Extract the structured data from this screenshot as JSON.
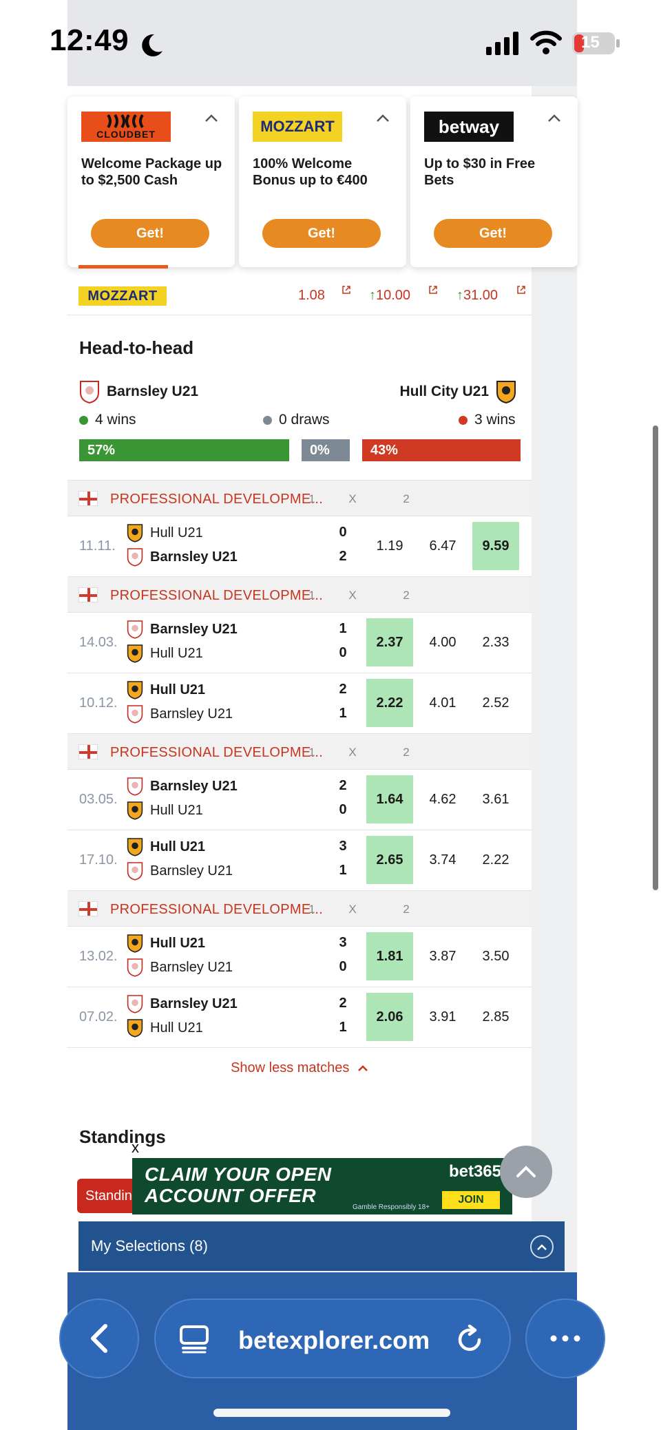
{
  "status": {
    "time": "12:49",
    "battery": "15"
  },
  "promos": [
    {
      "brand": "CLOUDBET",
      "text": "Welcome Package up to $2,500 Cash",
      "cta": "Get!"
    },
    {
      "brand": "MOZZART",
      "text": "100% Welcome Bonus up to €400",
      "cta": "Get!"
    },
    {
      "brand": "betway",
      "text": "Up to $30 in Free Bets",
      "cta": "Get!"
    }
  ],
  "odds_row": {
    "bookmaker": "MOZZART",
    "home": "1.08",
    "draw": "10.00",
    "away": "31.00"
  },
  "h2h": {
    "title": "Head-to-head",
    "home_team": "Barnsley U21",
    "away_team": "Hull City U21",
    "home_wins": "4 wins",
    "draws": "0 draws",
    "away_wins": "3 wins",
    "home_pct": "57%",
    "draw_pct": "0%",
    "away_pct": "43%",
    "home_frac": 0.57,
    "draw_frac": 0.0,
    "away_frac": 0.43
  },
  "headers": {
    "one": "1",
    "x": "X",
    "two": "2"
  },
  "league_name": "PROFESSIONAL DEVELOPME...",
  "matches": [
    {
      "date": "11.11.",
      "t1": "Hull U21",
      "t2": "Barnsley U21",
      "s1": "0",
      "s2": "2",
      "o1": "1.19",
      "ox": "6.47",
      "o2": "9.59"
    },
    {
      "date": "14.03.",
      "t1": "Barnsley U21",
      "t2": "Hull U21",
      "s1": "1",
      "s2": "0",
      "o1": "2.37",
      "ox": "4.00",
      "o2": "2.33"
    },
    {
      "date": "10.12.",
      "t1": "Hull U21",
      "t2": "Barnsley U21",
      "s1": "2",
      "s2": "1",
      "o1": "2.22",
      "ox": "4.01",
      "o2": "2.52"
    },
    {
      "date": "03.05.",
      "t1": "Barnsley U21",
      "t2": "Hull U21",
      "s1": "2",
      "s2": "0",
      "o1": "1.64",
      "ox": "4.62",
      "o2": "3.61"
    },
    {
      "date": "17.10.",
      "t1": "Hull U21",
      "t2": "Barnsley U21",
      "s1": "3",
      "s2": "1",
      "o1": "2.65",
      "ox": "3.74",
      "o2": "2.22"
    },
    {
      "date": "13.02.",
      "t1": "Hull U21",
      "t2": "Barnsley U21",
      "s1": "3",
      "s2": "0",
      "o1": "1.81",
      "ox": "3.87",
      "o2": "3.50"
    },
    {
      "date": "07.02.",
      "t1": "Barnsley U21",
      "t2": "Hull U21",
      "s1": "2",
      "s2": "1",
      "o1": "2.06",
      "ox": "3.91",
      "o2": "2.85"
    }
  ],
  "show_less": "Show less matches",
  "standings": {
    "title": "Standings",
    "tab": "Standings"
  },
  "ad": {
    "close": "x",
    "line1": "CLAIM YOUR OPEN",
    "line2": "ACCOUNT OFFER",
    "brand": "bet365",
    "join": "JOIN",
    "resp": "Gamble Responsibly 18+"
  },
  "selections": "My Selections (8)",
  "browser": {
    "url": "betexplorer.com"
  },
  "colors": {
    "accent_red": "#c8341e",
    "win_green": "#aee5b6",
    "bar_green": "#3a9634",
    "bar_gray": "#7d8a96",
    "bar_red": "#d03a22",
    "nav_blue": "#2c5ea6"
  }
}
